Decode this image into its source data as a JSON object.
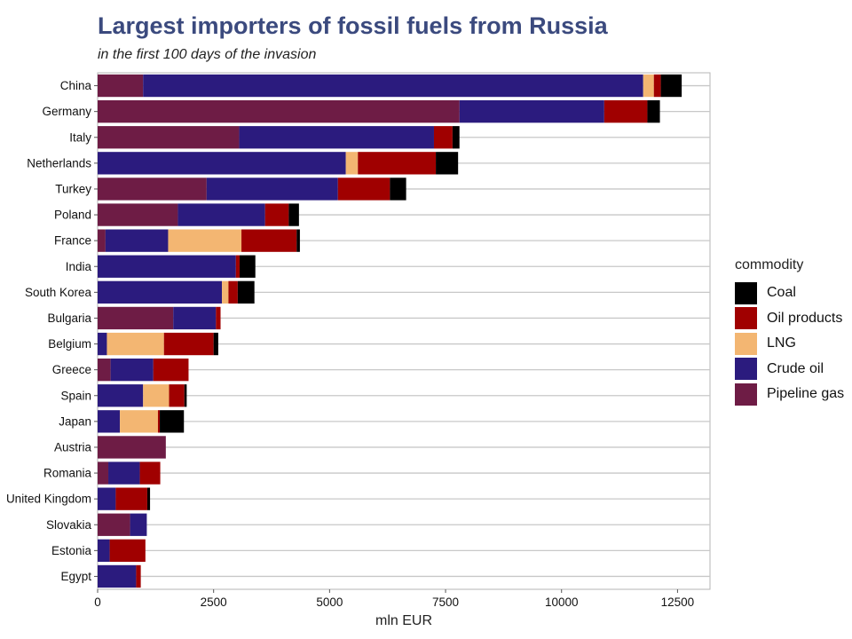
{
  "chart_data": {
    "type": "bar",
    "orientation": "horizontal",
    "stacked": true,
    "title": "Largest importers of fossil fuels from Russia",
    "subtitle": "in the first 100 days of the invasion",
    "xlabel": "mln EUR",
    "ylabel": "",
    "xlim": [
      0,
      13200
    ],
    "xticks": [
      0,
      2500,
      5000,
      7500,
      10000,
      12500
    ],
    "grid": true,
    "legend_title": "commodity",
    "legend_position": "right",
    "categories": [
      "China",
      "Germany",
      "Italy",
      "Netherlands",
      "Turkey",
      "Poland",
      "France",
      "India",
      "South Korea",
      "Bulgaria",
      "Belgium",
      "Greece",
      "Spain",
      "Japan",
      "Austria",
      "Romania",
      "United Kingdom",
      "Slovakia",
      "Estonia",
      "Egypt"
    ],
    "stack_order": [
      "Pipeline gas",
      "Crude oil",
      "LNG",
      "Oil products",
      "Coal"
    ],
    "legend_order": [
      "Coal",
      "Oil products",
      "LNG",
      "Crude oil",
      "Pipeline gas"
    ],
    "series": [
      {
        "name": "Pipeline gas",
        "color": "#6e1c45",
        "values": [
          980,
          7800,
          3050,
          0,
          2350,
          1730,
          170,
          0,
          0,
          1630,
          0,
          280,
          0,
          0,
          1470,
          230,
          0,
          700,
          0,
          0
        ]
      },
      {
        "name": "Crude oil",
        "color": "#2b1b7e",
        "values": [
          10780,
          3120,
          4200,
          5350,
          2830,
          1880,
          1350,
          2980,
          2680,
          920,
          200,
          920,
          980,
          480,
          0,
          680,
          390,
          360,
          260,
          830
        ]
      },
      {
        "name": "LNG",
        "color": "#f3b672",
        "values": [
          230,
          0,
          0,
          260,
          0,
          0,
          1580,
          0,
          140,
          0,
          1230,
          0,
          560,
          820,
          0,
          0,
          0,
          0,
          0,
          0
        ]
      },
      {
        "name": "Oil products",
        "color": "#a00000",
        "values": [
          150,
          930,
          400,
          1680,
          1120,
          510,
          1190,
          80,
          200,
          100,
          1070,
          760,
          330,
          40,
          0,
          440,
          680,
          0,
          770,
          100
        ]
      },
      {
        "name": "Coal",
        "color": "#000000",
        "values": [
          450,
          270,
          150,
          480,
          350,
          220,
          70,
          340,
          360,
          0,
          100,
          0,
          50,
          520,
          0,
          0,
          60,
          0,
          0,
          0
        ]
      }
    ]
  }
}
